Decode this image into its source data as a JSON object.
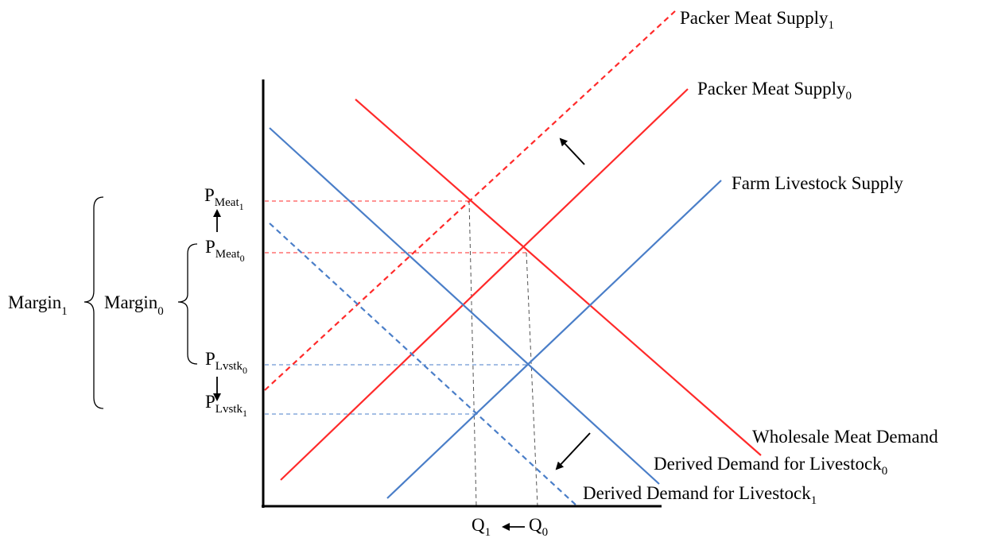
{
  "diagram": {
    "colors": {
      "meat": "#ff2a2a",
      "livestock": "#4a7ec8",
      "axis": "#000000",
      "guide": "#555555"
    },
    "curves": {
      "packer_supply_1": {
        "base": "Packer Meat Supply",
        "sub": "1"
      },
      "packer_supply_0": {
        "base": "Packer Meat Supply",
        "sub": "0"
      },
      "farm_supply": {
        "label": "Farm Livestock Supply"
      },
      "wholesale_demand": {
        "label": "Wholesale Meat Demand"
      },
      "derived_demand_0": {
        "base": "Derived Demand for Livestock",
        "sub": "0"
      },
      "derived_demand_1": {
        "base": "Derived Demand for Livestock",
        "sub": "1"
      }
    },
    "prices": {
      "p_meat_1": {
        "base": "P",
        "sub": "Meat",
        "subsub": "1"
      },
      "p_meat_0": {
        "base": "P",
        "sub": "Meat",
        "subsub": "0"
      },
      "p_lvstk_0": {
        "base": "P",
        "sub": "Lvstk",
        "subsub": "0"
      },
      "p_lvstk_1": {
        "base": "P",
        "sub": "Lvstk",
        "subsub": "1"
      }
    },
    "quantities": {
      "q1": {
        "base": "Q",
        "sub": "1"
      },
      "q0": {
        "base": "Q",
        "sub": "0"
      }
    },
    "margins": {
      "margin_1": {
        "base": "Margin",
        "sub": "1"
      },
      "margin_0": {
        "base": "Margin",
        "sub": "0"
      }
    }
  }
}
